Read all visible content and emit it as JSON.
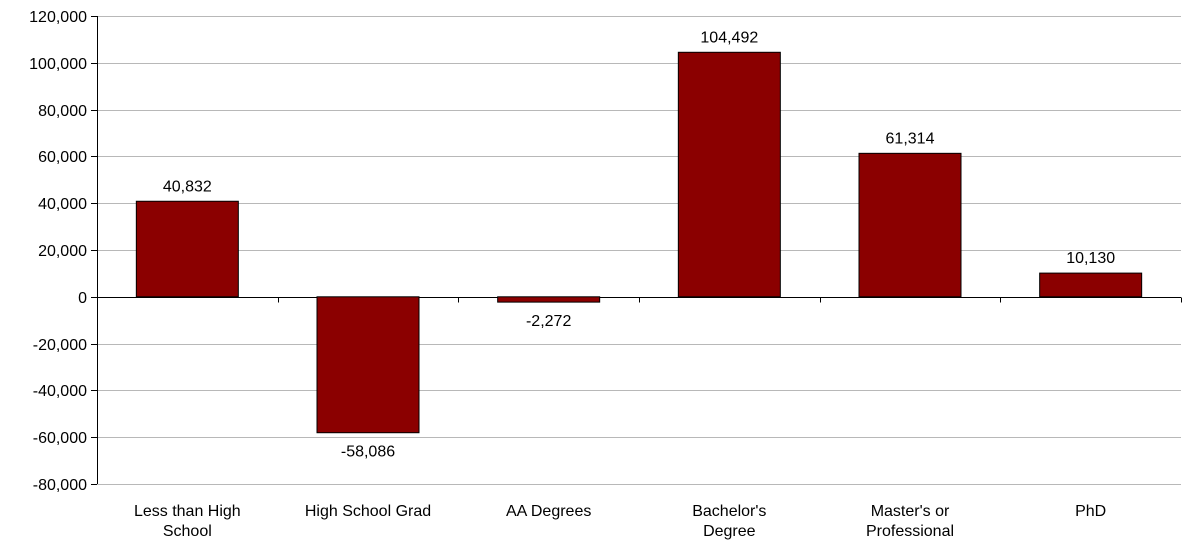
{
  "chart_data": {
    "type": "bar",
    "categories": [
      [
        "Less than High",
        "School"
      ],
      [
        "High School Grad"
      ],
      [
        "AA Degrees"
      ],
      [
        "Bachelor's",
        "Degree"
      ],
      [
        "Master's or",
        "Professional"
      ],
      [
        "PhD"
      ]
    ],
    "values": [
      40832,
      -58086,
      -2272,
      104492,
      61314,
      10130
    ],
    "value_labels": [
      "40,832",
      "-58,086",
      "-2,272",
      "104,492",
      "61,314",
      "10,130"
    ],
    "y_ticks": [
      120000,
      100000,
      80000,
      60000,
      40000,
      20000,
      0,
      -20000,
      -40000,
      -60000,
      -80000
    ],
    "y_tick_labels": [
      "120,000",
      "100,000",
      "80,000",
      "60,000",
      "40,000",
      "20,000",
      "0",
      "-20,000",
      "-40,000",
      "-60,000",
      "-80,000"
    ],
    "ylim": [
      -80000,
      120000
    ],
    "grid": true,
    "bar_color": "#8B0000",
    "title": "",
    "xlabel": "",
    "ylabel": ""
  }
}
